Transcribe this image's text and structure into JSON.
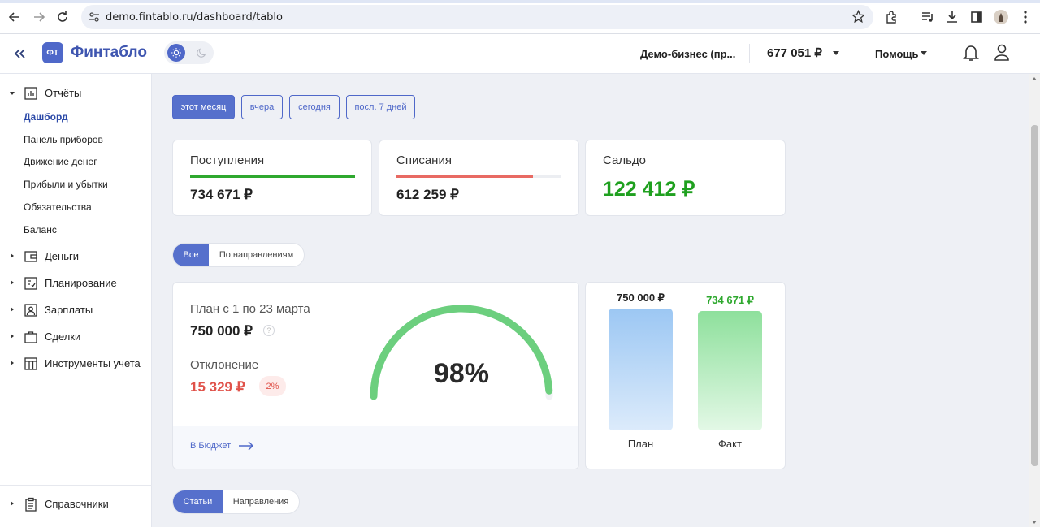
{
  "browser": {
    "url": "demo.fintablo.ru/dashboard/tablo"
  },
  "header": {
    "logo_badge": "ФТ",
    "logo_text": "Финтабло",
    "business": "Демо-бизнес (пр...",
    "balance": "677 051 ₽",
    "help": "Помощь"
  },
  "sidebar": {
    "reports_label": "Отчёты",
    "report_items": [
      "Дашборд",
      "Панель приборов",
      "Движение денег",
      "Прибыли и убытки",
      "Обязательства",
      "Баланс"
    ],
    "sections": [
      "Деньги",
      "Планирование",
      "Зарплаты",
      "Сделки",
      "Инструменты учета"
    ],
    "reference_label": "Справочники"
  },
  "periods": [
    "этот месяц",
    "вчера",
    "сегодня",
    "посл. 7 дней"
  ],
  "kpi": {
    "income_title": "Поступления",
    "income_value": "734 671 ₽",
    "income_fill": 1.0,
    "income_color": "#2ea82e",
    "expense_title": "Списания",
    "expense_value": "612 259 ₽",
    "expense_fill": 0.83,
    "expense_color": "#e86a63",
    "balance_title": "Сальдо",
    "balance_value": "122 412 ₽"
  },
  "filter_tabs": [
    "Все",
    "По направлениям"
  ],
  "plan": {
    "label": "План с 1 по 23 марта",
    "value": "750 000 ₽",
    "help_mark": "?",
    "deviation_label": "Отклонение",
    "deviation_value": "15 329 ₽",
    "deviation_badge": "2%",
    "percent_label": "98%",
    "percent": 0.98,
    "link": "В Бюджет",
    "gauge_color": "#6ccf7e"
  },
  "chart_data": {
    "type": "bar",
    "categories": [
      "План",
      "Факт"
    ],
    "values": [
      750000,
      734671
    ],
    "value_labels": [
      "750 000 ₽",
      "734 671 ₽"
    ],
    "colors": [
      "#9cc7f3",
      "#8ee09c"
    ]
  },
  "bottom_tabs": [
    "Статьи",
    "Направления"
  ]
}
